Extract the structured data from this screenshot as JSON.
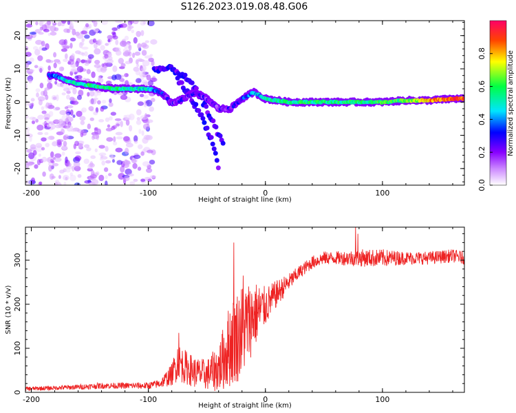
{
  "title": "S126.2023.019.08.48.G06",
  "chart_data": [
    {
      "type": "heatmap",
      "xlabel": "Height of straight line (km)",
      "ylabel": "Frequency (Hz)",
      "xlim": [
        -205,
        170
      ],
      "ylim": [
        -25,
        24.5
      ],
      "x_ticks": [
        "-200",
        "-100",
        "0",
        "100"
      ],
      "y_ticks": [
        "20",
        "10",
        "0",
        "-10",
        "-20"
      ],
      "colorbar": {
        "label": "Normalized spectral amplitude",
        "range": [
          0,
          1
        ],
        "ticks": [
          "0.0",
          "0.2",
          "0.4",
          "0.6",
          "0.8"
        ],
        "colors": [
          "#ffffff",
          "#cc88ff",
          "#8800ff",
          "#0000ff",
          "#00e5ff",
          "#00ff44",
          "#ffff00",
          "#ff4400",
          "#ff0066"
        ]
      },
      "ridge": {
        "x": [
          -185,
          -180,
          -170,
          -160,
          -150,
          -140,
          -130,
          -120,
          -110,
          -100,
          -95,
          -90,
          -85,
          -80,
          -70,
          -60,
          -50,
          -40,
          -30,
          -20,
          -15,
          -10,
          -5,
          0,
          20,
          40,
          60,
          80,
          100,
          120,
          140,
          160,
          170
        ],
        "frequency": [
          8,
          8,
          6.5,
          5.5,
          5,
          4.5,
          4,
          4,
          4,
          4,
          3.5,
          3,
          1.5,
          -0.5,
          1,
          3,
          1,
          -2,
          -2,
          1,
          2,
          3,
          2,
          1,
          0,
          0,
          0,
          0,
          0,
          0.5,
          0.5,
          1,
          1
        ],
        "amplitude": [
          0.3,
          0.35,
          0.45,
          0.5,
          0.55,
          0.55,
          0.55,
          0.5,
          0.5,
          0.45,
          0.35,
          0.3,
          0.25,
          0.25,
          0.25,
          0.25,
          0.2,
          0.2,
          0.25,
          0.3,
          0.35,
          0.4,
          0.45,
          0.5,
          0.55,
          0.55,
          0.55,
          0.55,
          0.6,
          0.6,
          0.8,
          0.9,
          0.9
        ]
      },
      "secondary_branches": [
        {
          "x": [
            -95,
            -80,
            -70,
            -60,
            -50,
            -40,
            -35
          ],
          "frequency": [
            10,
            10,
            8,
            4,
            -2,
            -10,
            -13
          ]
        },
        {
          "x": [
            -75,
            -65,
            -55,
            -45,
            -40
          ],
          "frequency": [
            7,
            2,
            -4,
            -12,
            -20
          ]
        }
      ],
      "noise_region_x": [
        -205,
        -95
      ]
    },
    {
      "type": "line",
      "xlabel": "Height of straight line (km)",
      "ylabel": "SNR (10 * v/v)",
      "xlim": [
        -205,
        170
      ],
      "ylim": [
        0,
        375
      ],
      "x_ticks": [
        "-200",
        "-100",
        "0",
        "100"
      ],
      "y_ticks": [
        "0",
        "100",
        "200",
        "300"
      ],
      "color": "#ee2222",
      "envelope": {
        "x": [
          -205,
          -180,
          -160,
          -140,
          -120,
          -100,
          -90,
          -80,
          -75,
          -70,
          -60,
          -50,
          -40,
          -30,
          -20,
          -10,
          0,
          10,
          20,
          30,
          40,
          50,
          60,
          80,
          100,
          120,
          140,
          160,
          170
        ],
        "mean": [
          8,
          10,
          12,
          15,
          15,
          15,
          20,
          40,
          70,
          60,
          45,
          40,
          55,
          110,
          140,
          175,
          195,
          225,
          250,
          275,
          295,
          305,
          305,
          305,
          305,
          305,
          305,
          310,
          305
        ],
        "spread": [
          5,
          5,
          6,
          7,
          7,
          8,
          10,
          25,
          45,
          40,
          35,
          35,
          55,
          100,
          110,
          80,
          45,
          30,
          20,
          15,
          15,
          15,
          15,
          20,
          20,
          15,
          15,
          15,
          15
        ]
      },
      "spikes": [
        {
          "x": -74,
          "y": 135
        },
        {
          "x": -27,
          "y": 340
        },
        {
          "x": -19,
          "y": 265
        },
        {
          "x": 77,
          "y": 375
        },
        {
          "x": 79,
          "y": 360
        }
      ]
    }
  ]
}
